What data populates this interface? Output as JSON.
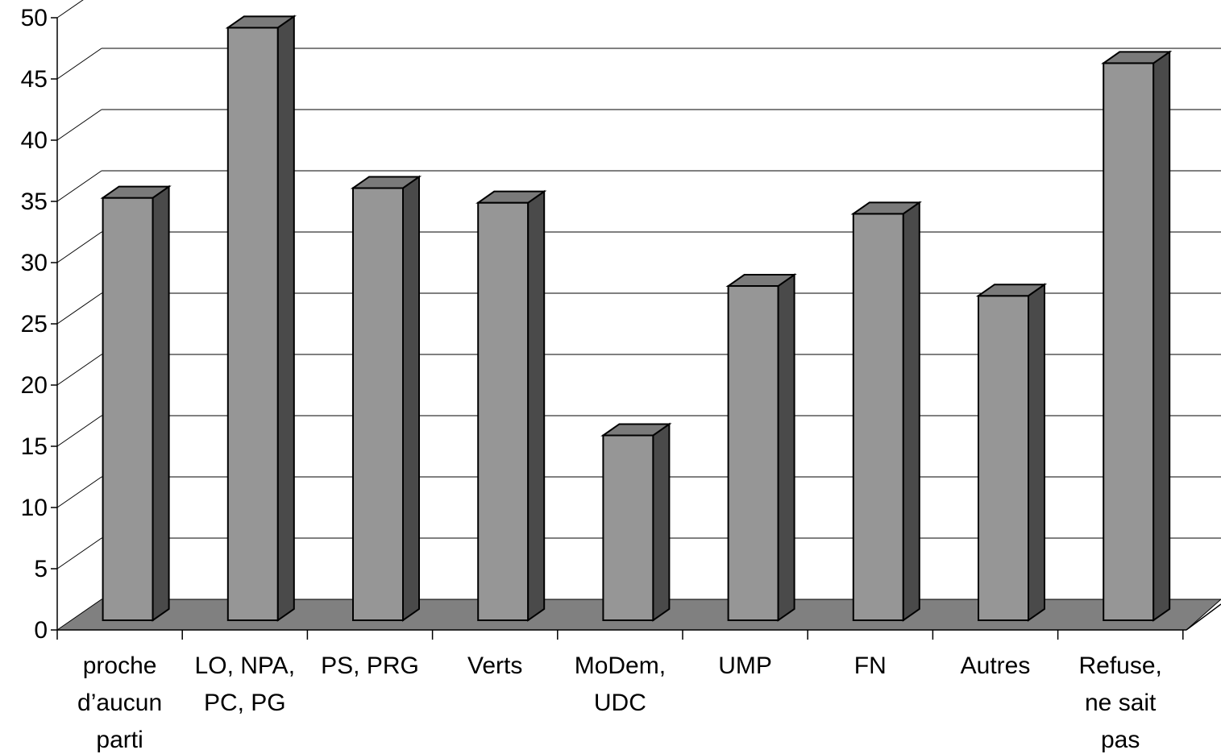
{
  "chart_data": {
    "type": "bar",
    "title": "",
    "xlabel": "",
    "ylabel": "",
    "categories": [
      [
        "proche",
        "d’aucun",
        "parti"
      ],
      [
        "LO, NPA,",
        "PC, PG"
      ],
      [
        "PS, PRG"
      ],
      [
        "Verts"
      ],
      [
        "MoDem,",
        "UDC"
      ],
      [
        "UMP"
      ],
      [
        "FN"
      ],
      [
        "Autres"
      ],
      [
        "Refuse,",
        "ne sait",
        "pas"
      ]
    ],
    "values": [
      34.5,
      48.4,
      35.3,
      34.1,
      15.1,
      27.3,
      33.2,
      26.5,
      45.5
    ],
    "ylim": [
      0,
      50
    ],
    "yticks": [
      "0",
      "5",
      "10",
      "15",
      "20",
      "25",
      "30",
      "35",
      "40",
      "45",
      "50"
    ],
    "grid": true,
    "legend": "none",
    "colors": {
      "bar_front": "#969696",
      "bar_side": "#4a4a4a",
      "bar_top": "#7a7a7a",
      "floor": "#808080"
    }
  }
}
